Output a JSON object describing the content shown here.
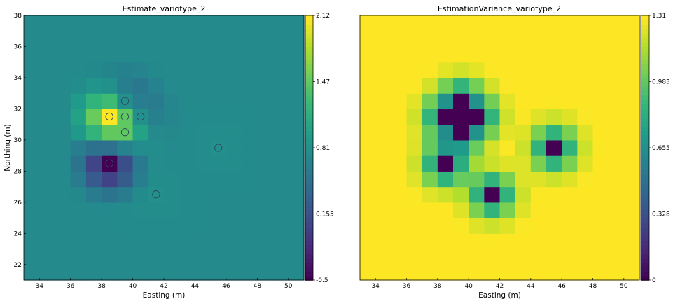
{
  "chart_data": [
    {
      "type": "heatmap",
      "title": "Estimate_variotype_2",
      "xlabel": "Easting (m)",
      "ylabel": "Northing (m)",
      "xlim": [
        33,
        51
      ],
      "ylim": [
        21,
        38
      ],
      "xticks": [
        "34",
        "36",
        "38",
        "40",
        "42",
        "44",
        "46",
        "48",
        "50"
      ],
      "yticks": [
        "22",
        "24",
        "26",
        "28",
        "30",
        "32",
        "34",
        "36",
        "38"
      ],
      "grid": false,
      "colormap": "viridis",
      "colorbar": {
        "range": [
          -0.5,
          2.12
        ],
        "ticks": [
          "2.12",
          "1.47",
          "0.81",
          "0.155",
          "-0.5"
        ]
      },
      "samples": [
        {
          "x": 38.5,
          "y": 31.5,
          "value": 2.12
        },
        {
          "x": 39.5,
          "y": 32.5,
          "value": 0.81
        },
        {
          "x": 39.5,
          "y": 31.5,
          "value": 1.47
        },
        {
          "x": 40.5,
          "y": 31.5,
          "value": 0.81
        },
        {
          "x": 39.5,
          "y": 30.5,
          "value": 1.47
        },
        {
          "x": 38.5,
          "y": 28.5,
          "value": -0.5
        },
        {
          "x": 41.5,
          "y": 26.5,
          "value": 0.81
        },
        {
          "x": 45.5,
          "y": 29.5,
          "value": 0.81
        }
      ],
      "mean": 0.6
    },
    {
      "type": "heatmap",
      "title": "EstimationVariance_variotype_2",
      "xlabel": "Easting (m)",
      "ylabel": "",
      "xlim": [
        33,
        51
      ],
      "ylim": [
        21,
        38
      ],
      "xticks": [
        "34",
        "36",
        "38",
        "40",
        "42",
        "44",
        "46",
        "48",
        "50"
      ],
      "grid": false,
      "colormap": "viridis",
      "colorbar": {
        "range": [
          0,
          1.31
        ],
        "ticks": [
          "1.31",
          "0.983",
          "0.655",
          "0.328",
          "0"
        ]
      },
      "samples": [
        {
          "x": 38.5,
          "y": 31.5
        },
        {
          "x": 39.5,
          "y": 32.5
        },
        {
          "x": 39.5,
          "y": 31.5
        },
        {
          "x": 40.5,
          "y": 31.5
        },
        {
          "x": 39.5,
          "y": 30.5
        },
        {
          "x": 38.5,
          "y": 28.5
        },
        {
          "x": 41.5,
          "y": 26.5
        },
        {
          "x": 45.5,
          "y": 29.5
        }
      ]
    }
  ]
}
